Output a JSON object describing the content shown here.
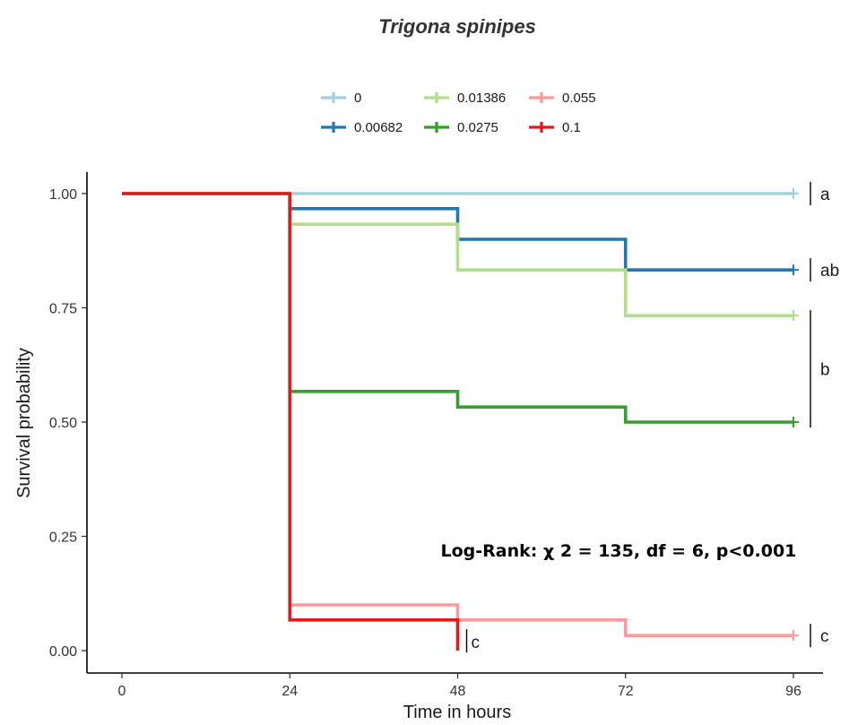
{
  "chart_data": {
    "type": "line",
    "step": true,
    "title": "Trigona spinipes",
    "xlabel": "Time in hours",
    "ylabel": "Survival probability",
    "xlim": [
      0,
      96
    ],
    "ylim": [
      0,
      1
    ],
    "xticks": [
      "0",
      "24",
      "48",
      "72",
      "96"
    ],
    "yticks": [
      "0.00",
      "0.25",
      "0.50",
      "0.75",
      "1.00"
    ],
    "grid": false,
    "legend_position": "top",
    "series": [
      {
        "name": "0",
        "color": "#a6cee3",
        "x": [
          0,
          24,
          48,
          72,
          96
        ],
        "y": [
          1.0,
          1.0,
          1.0,
          1.0,
          1.0
        ]
      },
      {
        "name": "0.00682",
        "color": "#1f78b4",
        "x": [
          0,
          24,
          48,
          72,
          96
        ],
        "y": [
          1.0,
          0.967,
          0.9,
          0.833,
          0.833
        ]
      },
      {
        "name": "0.01386",
        "color": "#b2df8a",
        "x": [
          0,
          24,
          48,
          72,
          96
        ],
        "y": [
          1.0,
          0.933,
          0.833,
          0.733,
          0.733
        ]
      },
      {
        "name": "0.0275",
        "color": "#33a02c",
        "x": [
          0,
          24,
          48,
          72,
          96
        ],
        "y": [
          1.0,
          0.567,
          0.533,
          0.5,
          0.5
        ]
      },
      {
        "name": "0.055",
        "color": "#fb9a99",
        "x": [
          0,
          24,
          48,
          72,
          96
        ],
        "y": [
          1.0,
          0.1,
          0.067,
          0.033,
          0.033
        ]
      },
      {
        "name": "0.1",
        "color": "#e31a1c",
        "x": [
          0,
          24,
          48
        ],
        "y": [
          1.0,
          0.067,
          0.0
        ]
      }
    ],
    "annotations": [
      {
        "text": "Log-Rank: χ 2 = 135, df = 6, p<0.001",
        "x": 71,
        "y": 0.22
      }
    ],
    "group_labels": [
      {
        "text": "a",
        "x": 96,
        "y_from": 1.0,
        "y_to": 1.0
      },
      {
        "text": "ab",
        "x": 96,
        "y_from": 0.833,
        "y_to": 0.833
      },
      {
        "text": "b",
        "x": 96,
        "y_from": 0.5,
        "y_to": 0.733
      },
      {
        "text": "c",
        "x": 96,
        "y_from": 0.033,
        "y_to": 0.033
      },
      {
        "text": "c",
        "x": 48,
        "y_from": 0.0,
        "y_to": 0.0
      }
    ]
  }
}
